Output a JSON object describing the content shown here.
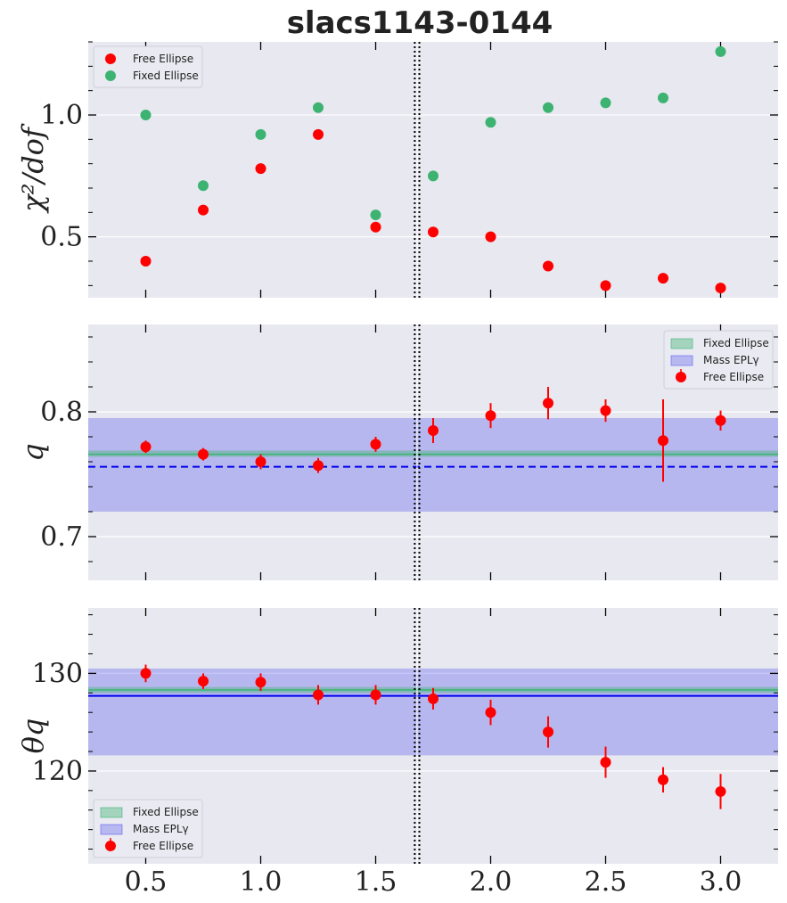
{
  "title": "slacs1143-0144",
  "colors": {
    "free": "#ff0000",
    "fixed": "#3cb371",
    "mass": "#0000ee",
    "panel_bg": "#e8e8f0"
  },
  "chart_data": [
    {
      "id": "chi2",
      "type": "scatter",
      "ylabel": "χ²/dof",
      "xlim": [
        0.25,
        3.25
      ],
      "ylim": [
        0.25,
        1.3
      ],
      "yticks": [
        0.5,
        1.0
      ],
      "ytick_labels": [
        "0.5",
        "1.0"
      ],
      "legend": {
        "loc": "upper-left",
        "entries": [
          "Free Ellipse",
          "Fixed Ellipse"
        ]
      },
      "vlines": [
        1.67,
        1.69
      ],
      "series": [
        {
          "name": "Free Ellipse",
          "color": "#ff0000",
          "x": [
            0.5,
            0.75,
            1.0,
            1.25,
            1.5,
            1.75,
            2.0,
            2.25,
            2.5,
            2.75,
            3.0
          ],
          "y": [
            0.4,
            0.61,
            0.78,
            0.92,
            0.54,
            0.52,
            0.5,
            0.38,
            0.3,
            0.33,
            0.29
          ]
        },
        {
          "name": "Fixed Ellipse",
          "color": "#3cb371",
          "x": [
            0.5,
            0.75,
            1.0,
            1.25,
            1.5,
            1.75,
            2.0,
            2.25,
            2.5,
            2.75,
            3.0
          ],
          "y": [
            1.0,
            0.71,
            0.92,
            1.03,
            0.59,
            0.75,
            0.97,
            1.03,
            1.05,
            1.07,
            1.26
          ]
        }
      ]
    },
    {
      "id": "q",
      "type": "scatter",
      "ylabel": "q",
      "xlim": [
        0.25,
        3.25
      ],
      "ylim": [
        0.665,
        0.87
      ],
      "yticks": [
        0.7,
        0.8
      ],
      "ytick_labels": [
        "0.7",
        "0.8"
      ],
      "legend": {
        "loc": "upper-right",
        "entries": [
          "Fixed Ellipse",
          "Mass EPLγ",
          "Free Ellipse"
        ]
      },
      "vlines": [
        1.67,
        1.69
      ],
      "bands": [
        {
          "name": "Mass EPLγ",
          "lo": 0.72,
          "hi": 0.795,
          "center": 0.756,
          "line": "dashed"
        },
        {
          "name": "Fixed Ellipse",
          "lo": 0.764,
          "hi": 0.769,
          "center": 0.766
        }
      ],
      "series": [
        {
          "name": "Free Ellipse",
          "color": "#ff0000",
          "x": [
            0.5,
            0.75,
            1.0,
            1.25,
            1.5,
            1.75,
            2.0,
            2.25,
            2.5,
            2.75,
            3.0
          ],
          "y": [
            0.772,
            0.766,
            0.76,
            0.757,
            0.774,
            0.785,
            0.797,
            0.807,
            0.801,
            0.777,
            0.793
          ],
          "err": [
            0.005,
            0.005,
            0.006,
            0.006,
            0.006,
            0.01,
            0.01,
            0.013,
            0.009,
            0.033,
            0.008
          ]
        }
      ]
    },
    {
      "id": "theta",
      "type": "scatter",
      "ylabel": "θq",
      "xlim": [
        0.25,
        3.25
      ],
      "xlabel_ticks": [
        "0.5",
        "1.0",
        "1.5",
        "2.0",
        "2.5",
        "3.0"
      ],
      "xticks": [
        0.5,
        1.0,
        1.5,
        2.0,
        2.5,
        3.0
      ],
      "ylim": [
        110.5,
        136.7
      ],
      "yticks": [
        120,
        130
      ],
      "ytick_labels": [
        "120",
        "130"
      ],
      "legend": {
        "loc": "lower-left",
        "entries": [
          "Fixed Ellipse",
          "Mass EPLγ",
          "Free Ellipse"
        ]
      },
      "vlines": [
        1.67,
        1.69
      ],
      "bands": [
        {
          "name": "Mass EPLγ",
          "lo": 121.6,
          "hi": 130.5,
          "center": 127.7,
          "line": "solid"
        },
        {
          "name": "Fixed Ellipse",
          "lo": 128.0,
          "hi": 128.6,
          "center": 128.3
        }
      ],
      "series": [
        {
          "name": "Free Ellipse",
          "color": "#ff0000",
          "x": [
            0.5,
            0.75,
            1.0,
            1.25,
            1.5,
            1.75,
            2.0,
            2.25,
            2.5,
            2.75,
            3.0
          ],
          "y": [
            130.0,
            129.2,
            129.1,
            127.8,
            127.8,
            127.4,
            126.0,
            124.0,
            120.9,
            119.1,
            117.9
          ],
          "err": [
            0.9,
            0.8,
            0.9,
            1.0,
            1.0,
            1.1,
            1.3,
            1.6,
            1.6,
            1.3,
            1.8
          ]
        }
      ]
    }
  ]
}
